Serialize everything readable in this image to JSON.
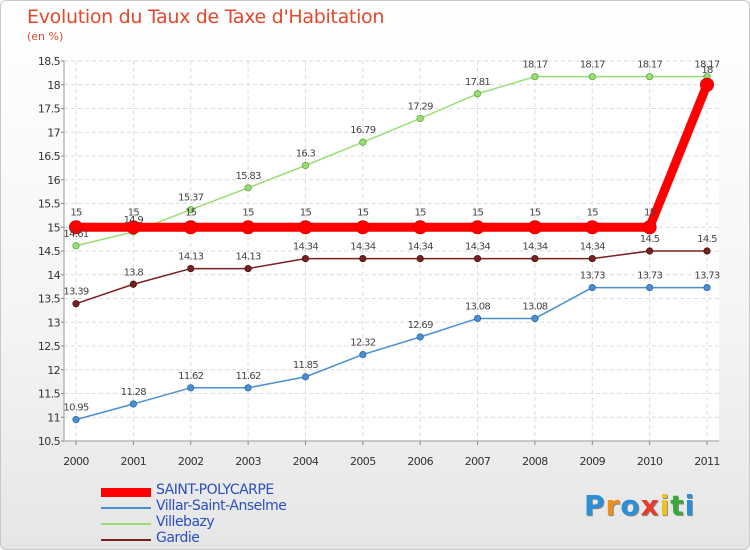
{
  "title": "Evolution du Taux de Taxe d'Habitation",
  "unit": "(en %)",
  "logo": "Proxiti",
  "chart_data": {
    "type": "line",
    "x": [
      "2000",
      "2001",
      "2002",
      "2003",
      "2004",
      "2005",
      "2006",
      "2007",
      "2008",
      "2009",
      "2010",
      "2011"
    ],
    "ylim": [
      10.5,
      18.5
    ],
    "yticks": [
      "10.5",
      "11",
      "11.5",
      "12",
      "12.5",
      "13",
      "13.5",
      "14",
      "14.5",
      "15",
      "15.5",
      "16",
      "16.5",
      "17",
      "17.5",
      "18",
      "18.5"
    ],
    "grid": true,
    "legend_position": "bottom-left",
    "series": [
      {
        "name": "SAINT-POLYCARPE",
        "color": "#ff0000",
        "values": [
          15,
          15,
          15,
          15,
          15,
          15,
          15,
          15,
          15,
          15,
          15,
          18
        ],
        "labels": [
          "15",
          "15",
          "15",
          "15",
          "15",
          "15",
          "15",
          "15",
          "15",
          "15",
          "15",
          "18"
        ]
      },
      {
        "name": "Villar-Saint-Anselme",
        "color": "#4a8fd0",
        "values": [
          10.95,
          11.28,
          11.62,
          11.62,
          11.85,
          12.32,
          12.69,
          13.08,
          13.08,
          13.73,
          13.73,
          13.73
        ],
        "labels": [
          "10.95",
          "11.28",
          "11.62",
          "11.62",
          "11.85",
          "12.32",
          "12.69",
          "13.08",
          "13.08",
          "13.73",
          "13.73",
          "13.73"
        ]
      },
      {
        "name": "Villebazy",
        "color": "#99dd77",
        "values": [
          14.61,
          14.9,
          15.37,
          15.83,
          16.3,
          16.79,
          17.29,
          17.81,
          18.17,
          18.17,
          18.17,
          18.17
        ],
        "labels": [
          "14.61",
          "14.9",
          "15.37",
          "15.83",
          "16.3",
          "16.79",
          "17.29",
          "17.81",
          "18.17",
          "18.17",
          "18.17",
          "18.17"
        ]
      },
      {
        "name": "Gardie",
        "color": "#7a2020",
        "values": [
          13.39,
          13.8,
          14.13,
          14.13,
          14.34,
          14.34,
          14.34,
          14.34,
          14.34,
          14.34,
          14.5,
          14.5
        ],
        "labels": [
          "13.39",
          "13.8",
          "14.13",
          "14.13",
          "14.34",
          "14.34",
          "14.34",
          "14.34",
          "14.34",
          "14.34",
          "14.5",
          "14.5"
        ]
      }
    ]
  }
}
